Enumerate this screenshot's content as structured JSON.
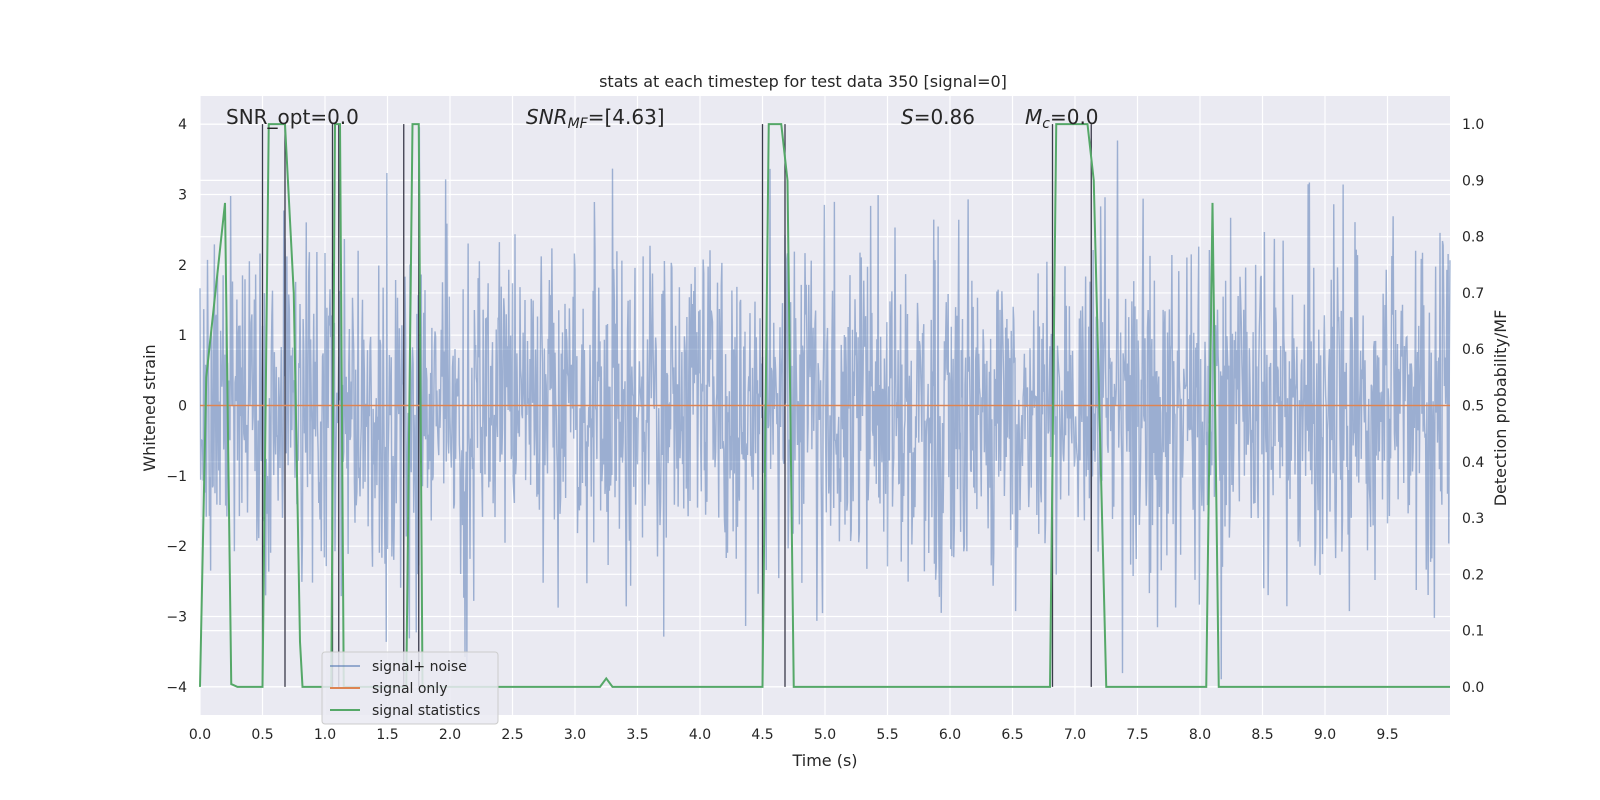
{
  "chart_data": {
    "type": "line",
    "title": "stats at each timestep for test data 350 [signal=0]",
    "xlabel": "Time (s)",
    "ylabel": "Whitened strain",
    "y2label": "Detection probability/MF",
    "xlim": [
      0.0,
      10.0
    ],
    "ylim": [
      -4.4,
      4.4
    ],
    "y2lim": [
      -0.05,
      1.05
    ],
    "x_ticks": [
      0.0,
      0.5,
      1.0,
      1.5,
      2.0,
      2.5,
      3.0,
      3.5,
      4.0,
      4.5,
      5.0,
      5.5,
      6.0,
      6.5,
      7.0,
      7.5,
      8.0,
      8.5,
      9.0,
      9.5
    ],
    "x_tick_labels": [
      "0.0",
      "0.5",
      "1.0",
      "1.5",
      "2.0",
      "2.5",
      "3.0",
      "3.5",
      "4.0",
      "4.5",
      "5.0",
      "5.5",
      "6.0",
      "6.5",
      "7.0",
      "7.5",
      "8.0",
      "8.5",
      "9.0",
      "9.5"
    ],
    "y_ticks": [
      -4,
      -3,
      -2,
      -1,
      0,
      1,
      2,
      3,
      4
    ],
    "y_tick_labels": [
      "−4",
      "−3",
      "−2",
      "−1",
      "0",
      "1",
      "2",
      "3",
      "4"
    ],
    "y2_ticks": [
      0.0,
      0.1,
      0.2,
      0.3,
      0.4,
      0.5,
      0.6,
      0.7,
      0.8,
      0.9,
      1.0
    ],
    "y2_tick_labels": [
      "0.0",
      "0.1",
      "0.2",
      "0.3",
      "0.4",
      "0.5",
      "0.6",
      "0.7",
      "0.8",
      "0.9",
      "1.0"
    ],
    "grid": true,
    "legend_placement": "lower-left",
    "annotations": {
      "snr_opt": "SNR_opt=0.0",
      "snr_mf_label": "SNR",
      "snr_mf_sub": "MF",
      "snr_mf_value": "=[4.63]",
      "s_label": "S",
      "s_value": "=0.86",
      "mc_label": "M",
      "mc_sub": "c",
      "mc_value": "=0.0"
    },
    "series": [
      {
        "name": "signal+ noise",
        "color": "#4c72b0",
        "axis": "left",
        "kind": "noise",
        "sample_rate": 200,
        "amplitude_std": 1.2
      },
      {
        "name": "signal only",
        "color": "#dd8452",
        "axis": "left",
        "kind": "line",
        "x": [
          0.0,
          10.0
        ],
        "y": [
          0.0,
          0.0
        ]
      },
      {
        "name": "signal statistics",
        "color": "#55a868",
        "axis": "right",
        "kind": "line",
        "x": [
          0.0,
          0.05,
          0.2,
          0.25,
          0.3,
          0.5,
          0.55,
          0.6,
          0.68,
          0.75,
          0.8,
          0.82,
          0.85,
          1.05,
          1.08,
          1.1,
          1.12,
          1.15,
          1.6,
          1.65,
          1.7,
          1.75,
          1.78,
          1.8,
          3.2,
          3.25,
          3.3,
          4.5,
          4.55,
          4.65,
          4.7,
          4.75,
          6.8,
          6.85,
          7.1,
          7.15,
          7.25,
          8.0,
          8.05,
          8.1,
          8.15,
          10.0
        ],
        "y": [
          0.0,
          0.55,
          0.86,
          0.005,
          0.0,
          0.0,
          1.0,
          1.0,
          1.0,
          0.7,
          0.08,
          0.0,
          0.0,
          0.0,
          1.0,
          1.0,
          1.0,
          0.0,
          0.0,
          0.0,
          1.0,
          1.0,
          0.0,
          0.0,
          0.0,
          0.015,
          0.0,
          0.0,
          1.0,
          1.0,
          0.9,
          0.0,
          0.0,
          1.0,
          1.0,
          0.9,
          0.0,
          0.0,
          0.0,
          0.86,
          0.0,
          0.0
        ]
      }
    ],
    "vertical_lines_seconds": [
      0.5,
      0.68,
      1.06,
      1.11,
      1.63,
      1.75,
      4.5,
      4.68,
      6.82,
      7.13
    ]
  }
}
